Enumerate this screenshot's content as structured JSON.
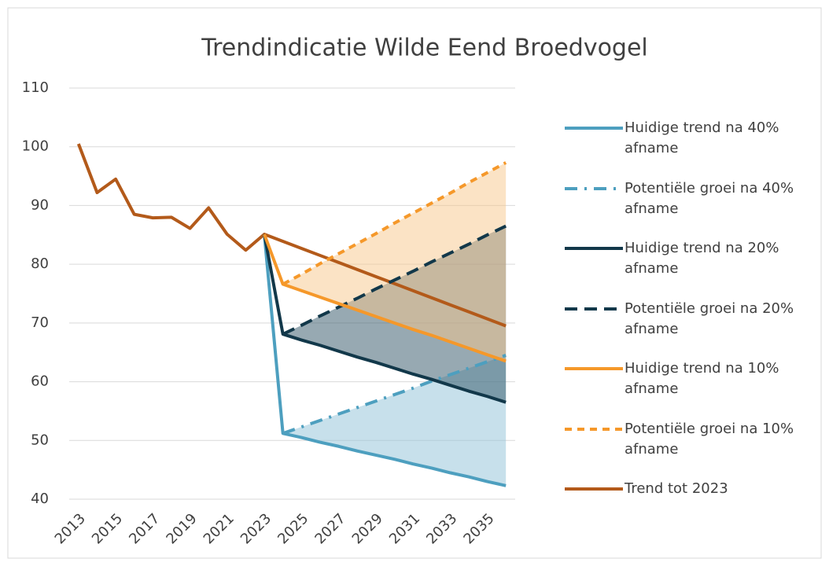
{
  "chart_data": {
    "type": "line",
    "title": "Trendindicatie Wilde Eend Broedvogel",
    "x": [
      2013,
      2014,
      2015,
      2016,
      2017,
      2018,
      2019,
      2020,
      2021,
      2022,
      2023,
      2024,
      2025,
      2026,
      2027,
      2028,
      2029,
      2030,
      2031,
      2032,
      2033,
      2034,
      2035,
      2036
    ],
    "xlim": [
      2012.5,
      2036.5
    ],
    "xticks": [
      2013,
      2015,
      2017,
      2019,
      2021,
      2023,
      2025,
      2027,
      2029,
      2031,
      2033,
      2035
    ],
    "ylim": [
      40,
      110
    ],
    "yticks": [
      40,
      50,
      60,
      70,
      80,
      90,
      100,
      110
    ],
    "grid": true,
    "legend": "right",
    "series": [
      {
        "name": "Huidige trend na 40% afname",
        "color": "#4d9fbf",
        "dash": "solid",
        "values": [
          null,
          null,
          null,
          null,
          null,
          null,
          null,
          null,
          null,
          null,
          85.1,
          51.2,
          50.5,
          49.7,
          49.0,
          48.2,
          47.5,
          46.8,
          46.0,
          45.3,
          44.5,
          43.8,
          43.0,
          42.3
        ]
      },
      {
        "name": "Potentiële groei na 40% afname",
        "color": "#4d9fbf",
        "dash": "dashdot",
        "band_with": 0,
        "band_color": "#8fc2d8",
        "values": [
          null,
          null,
          null,
          null,
          null,
          null,
          null,
          null,
          null,
          null,
          null,
          51.2,
          52.3,
          53.4,
          54.5,
          55.6,
          56.7,
          57.8,
          58.9,
          60.1,
          61.2,
          62.3,
          63.4,
          64.5
        ]
      },
      {
        "name": "Huidige trend na 20% afname",
        "color": "#12384a",
        "dash": "solid",
        "values": [
          null,
          null,
          null,
          null,
          null,
          null,
          null,
          null,
          null,
          null,
          85.1,
          68.1,
          67.1,
          66.2,
          65.2,
          64.2,
          63.3,
          62.3,
          61.3,
          60.4,
          59.4,
          58.4,
          57.5,
          56.5
        ]
      },
      {
        "name": "Potentiële groei na 20% afname",
        "color": "#12384a",
        "dash": "dash",
        "band_with": 2,
        "band_color": "#2f5466",
        "values": [
          null,
          null,
          null,
          null,
          null,
          null,
          null,
          null,
          null,
          null,
          null,
          68.1,
          69.6,
          71.2,
          72.7,
          74.2,
          75.8,
          77.3,
          78.8,
          80.4,
          81.9,
          83.4,
          85.0,
          86.5
        ]
      },
      {
        "name": "Huidige trend na 10% afname",
        "color": "#f5982a",
        "dash": "solid",
        "values": [
          null,
          null,
          null,
          null,
          null,
          null,
          null,
          null,
          null,
          null,
          85.1,
          76.6,
          75.5,
          74.4,
          73.3,
          72.2,
          71.1,
          70.0,
          68.9,
          67.9,
          66.8,
          65.7,
          64.6,
          63.5
        ]
      },
      {
        "name": "Potentiële groei na 10% afname",
        "color": "#f5982a",
        "dash": "shortdash",
        "band_with": 4,
        "band_color": "#f7c78c",
        "values": [
          null,
          null,
          null,
          null,
          null,
          null,
          null,
          null,
          null,
          null,
          null,
          76.6,
          78.3,
          80.1,
          81.8,
          83.5,
          85.2,
          87.0,
          88.7,
          90.4,
          92.1,
          93.9,
          95.6,
          97.3
        ]
      },
      {
        "name": "Trend tot 2023",
        "color": "#b35a1a",
        "dash": "solid",
        "values": [
          100.5,
          92.2,
          94.5,
          88.5,
          87.9,
          88.0,
          86.1,
          89.6,
          85.1,
          82.4,
          85.1,
          83.9,
          82.7,
          81.5,
          80.3,
          79.1,
          77.9,
          76.7,
          75.5,
          74.3,
          73.1,
          71.9,
          70.7,
          69.5
        ]
      }
    ]
  }
}
